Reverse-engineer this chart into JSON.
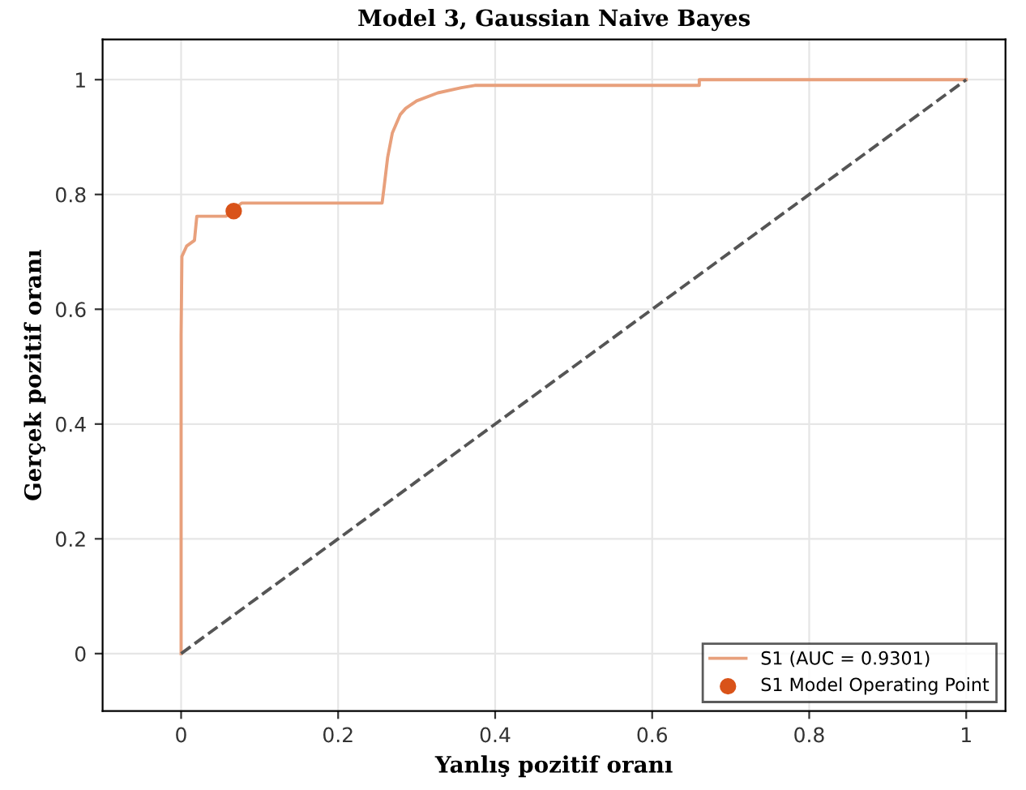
{
  "chart_data": {
    "type": "line",
    "title": "Model 3, Gaussian Naive Bayes",
    "xlabel": "Yanlış pozitif oranı",
    "ylabel": "Gerçek pozitif oranı",
    "xlim": [
      -0.1,
      1.05
    ],
    "ylim": [
      -0.1,
      1.07
    ],
    "xticks": [
      0,
      0.2,
      0.4,
      0.6,
      0.8,
      1
    ],
    "yticks": [
      0,
      0.2,
      0.4,
      0.6,
      0.8,
      1
    ],
    "grid": true,
    "legend": "bottom right",
    "series": [
      {
        "name": "S1 (AUC = 0.9301)",
        "color": "#e8a07c",
        "marker": "none",
        "line_style": "solid",
        "x": [
          0,
          0,
          0.001,
          0.007,
          0.017,
          0.02,
          0.057,
          0.077,
          0.256,
          0.259,
          0.263,
          0.269,
          0.279,
          0.286,
          0.3,
          0.327,
          0.357,
          0.374,
          0.66,
          0.66,
          1
        ],
        "values": [
          0,
          0.556,
          0.692,
          0.71,
          0.72,
          0.762,
          0.762,
          0.785,
          0.785,
          0.818,
          0.864,
          0.907,
          0.939,
          0.95,
          0.963,
          0.977,
          0.986,
          0.99,
          0.99,
          1,
          1
        ]
      },
      {
        "name": "S1 Model Operating Point",
        "type": "scatter",
        "color": "#d95319",
        "marker": "circle",
        "x": [
          0.067
        ],
        "values": [
          0.771
        ]
      },
      {
        "color": "#555555",
        "marker": "none",
        "line_style": "dashed",
        "x": [
          0,
          1
        ],
        "values": [
          0,
          1
        ]
      }
    ]
  }
}
